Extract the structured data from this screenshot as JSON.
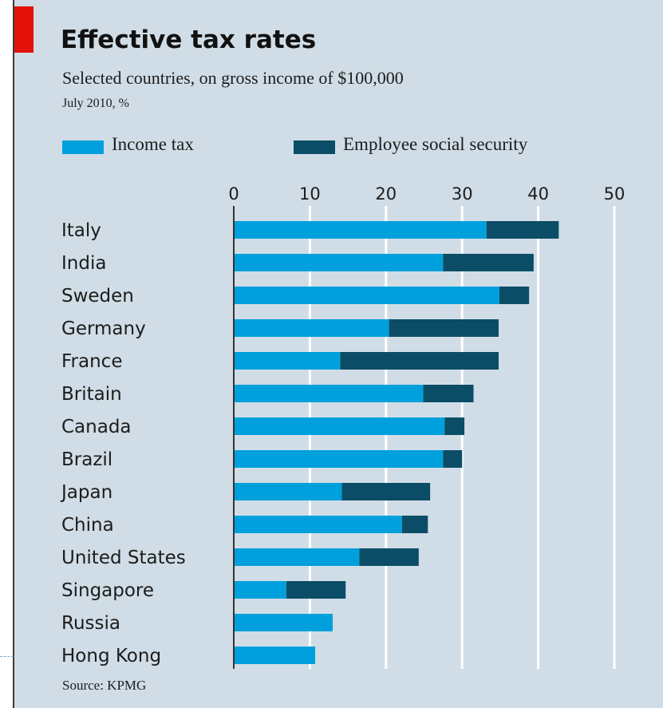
{
  "header": {
    "title": "Effective tax rates",
    "subtitle": "Selected countries, on gross income of $100,000",
    "note": "July 2010, %"
  },
  "source": "Source: KPMG",
  "colors": {
    "accent": "#e3120b",
    "background": "#d0dde6",
    "income_tax": "#00a0dc",
    "social_security": "#0b4d66",
    "gridline": "#ffffff",
    "axis": "#333333"
  },
  "chart_data": {
    "type": "bar",
    "orientation": "horizontal",
    "stacked": true,
    "title": "Effective tax rates",
    "subtitle": "Selected countries, on gross income of $100,000",
    "unit_note": "July 2010, %",
    "categories": [
      "Italy",
      "India",
      "Sweden",
      "Germany",
      "France",
      "Britain",
      "Canada",
      "Brazil",
      "Japan",
      "China",
      "United States",
      "Singapore",
      "Russia",
      "Hong Kong"
    ],
    "series": [
      {
        "name": "Income tax",
        "color": "#00a0dc",
        "values": [
          33.2,
          27.5,
          34.9,
          20.4,
          14.0,
          24.9,
          27.7,
          27.5,
          14.2,
          22.1,
          16.5,
          6.9,
          13.0,
          10.7
        ]
      },
      {
        "name": "Employee social security",
        "color": "#0b4d66",
        "values": [
          9.5,
          11.9,
          3.9,
          14.4,
          20.8,
          6.6,
          2.6,
          2.5,
          11.6,
          3.4,
          7.8,
          7.8,
          0,
          0
        ]
      }
    ],
    "x_ticks": [
      0,
      10,
      20,
      30,
      40,
      50
    ],
    "xlim": [
      0,
      50
    ],
    "xlabel": "",
    "ylabel": "",
    "grid": true,
    "legend": "top",
    "source": "Source: KPMG"
  }
}
